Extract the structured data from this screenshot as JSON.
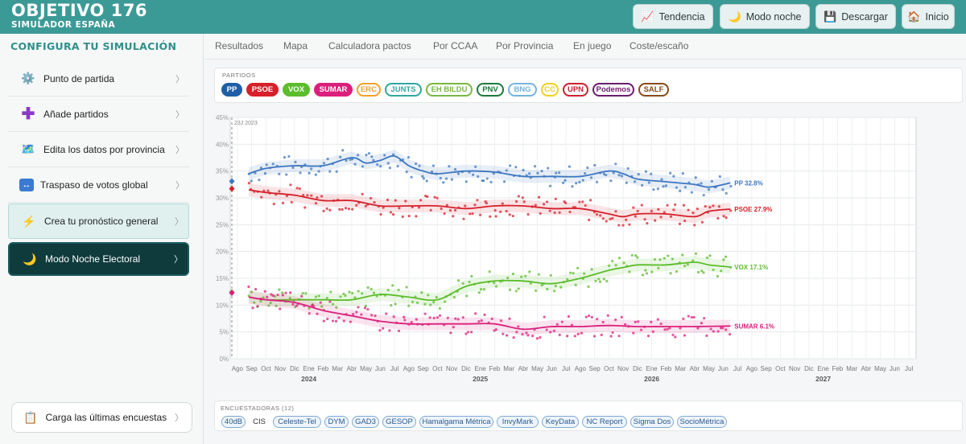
{
  "header": {
    "title": "OBJETIVO 176",
    "subtitle": "SIMULADOR ESPAÑA",
    "buttons": [
      {
        "label": "Tendencia",
        "icon": "chart-icon"
      },
      {
        "label": "Modo noche",
        "icon": "moon-icon"
      },
      {
        "label": "Descargar",
        "icon": "floppy-icon"
      },
      {
        "label": "Inicio",
        "icon": "home-icon"
      }
    ]
  },
  "sidebar": {
    "title": "CONFIGURA TU SIMULACIÓN",
    "items": [
      {
        "label": "Punto de partida",
        "icon": "gear-icon"
      },
      {
        "label": "Añade partidos",
        "icon": "plus-icon"
      },
      {
        "label": "Edita los datos por provincia",
        "icon": "map-icon"
      },
      {
        "label": "Traspaso de votos global",
        "icon": "swap-icon"
      },
      {
        "label": "Crea tu pronóstico general",
        "icon": "lightning-icon"
      },
      {
        "label": "Modo Noche Electoral",
        "icon": "moon-icon"
      }
    ],
    "load_button": {
      "label": "Carga las últimas encuestas",
      "icon": "clipboard-icon"
    },
    "chevron": "〉"
  },
  "tabs": [
    "Resultados",
    "Mapa",
    "Calculadora pactos",
    "Por CCAA",
    "Por Provincia",
    "En juego",
    "Coste/escaño"
  ],
  "parties_label": "PARTIDOS",
  "parties": [
    {
      "name": "PP",
      "color": "#1f5fa8",
      "active": true
    },
    {
      "name": "PSOE",
      "color": "#d6202a",
      "active": true
    },
    {
      "name": "VOX",
      "color": "#5bbd2b",
      "active": true
    },
    {
      "name": "SUMAR",
      "color": "#dc1f7c",
      "active": true
    },
    {
      "name": "ERC",
      "color": "#f2a12c",
      "active": false
    },
    {
      "name": "JUNTS",
      "color": "#2fa7a0",
      "active": false
    },
    {
      "name": "EH BILDU",
      "color": "#78b843",
      "active": false
    },
    {
      "name": "PNV",
      "color": "#1a7a3a",
      "active": false
    },
    {
      "name": "BNG",
      "color": "#74b3e0",
      "active": false
    },
    {
      "name": "CC",
      "color": "#f0d020",
      "active": false
    },
    {
      "name": "UPN",
      "color": "#cc1f2e",
      "active": false
    },
    {
      "name": "Podemos",
      "color": "#6a1b6e",
      "active": false
    },
    {
      "name": "SALF",
      "color": "#8a4a14",
      "active": false
    }
  ],
  "pollsters_label": "ENCUESTADORAS (12)",
  "pollsters": [
    "40dB",
    "CIS",
    "Celeste-Tel",
    "DYM",
    "GAD3",
    "GESOP",
    "Hamalgama Métrica",
    "InvyMark",
    "KeyData",
    "NC Report",
    "Sigma Dos",
    "SocioMétrica"
  ],
  "chart_data": {
    "type": "line",
    "ylim": [
      0,
      45
    ],
    "yticks": [
      "0%",
      "5%",
      "10%",
      "15%",
      "20%",
      "25%",
      "30%",
      "35%",
      "40%",
      "45%"
    ],
    "grid": true,
    "annotation": "23J 2023",
    "x_months": [
      "Ago",
      "Sep",
      "Oct",
      "Nov",
      "Dic",
      "Ene",
      "Feb",
      "Mar",
      "Abr",
      "May",
      "Jun",
      "Jul",
      "Ago",
      "Sep",
      "Oct",
      "Nov",
      "Dic",
      "Ene",
      "Feb",
      "Mar",
      "Abr",
      "May",
      "Jun",
      "Jul",
      "Ago",
      "Sep",
      "Oct",
      "Nov",
      "Dic",
      "Ene",
      "Feb",
      "Mar",
      "Abr",
      "May",
      "Jun",
      "Jul",
      "Ago",
      "Sep",
      "Oct",
      "Nov",
      "Dic",
      "Ene",
      "Feb",
      "Mar",
      "Abr",
      "May",
      "Jun",
      "Jul"
    ],
    "x_years": [
      {
        "label": "2024",
        "month_index": 5
      },
      {
        "label": "2025",
        "month_index": 17
      },
      {
        "label": "2026",
        "month_index": 29
      },
      {
        "label": "2027",
        "month_index": 41
      }
    ],
    "series": [
      {
        "name": "PP",
        "color": "#3d77c0",
        "end_label": "PP 32.8%",
        "start": 33.1,
        "x": [
          0.8,
          2,
          4,
          6,
          8,
          9,
          10,
          11,
          12,
          13,
          14,
          16,
          18,
          20,
          22,
          24,
          26,
          27,
          28,
          30,
          32,
          33,
          34.5
        ],
        "y": [
          34.5,
          35.5,
          36,
          36,
          37.5,
          36.5,
          37,
          37.8,
          36,
          35,
          34.5,
          35,
          34.8,
          34,
          34,
          34,
          35,
          34.5,
          33.5,
          33,
          32.5,
          32,
          32.8
        ]
      },
      {
        "name": "PSOE",
        "color": "#d6202a",
        "end_label": "PSOE 27.9%",
        "start": 31.7,
        "x": [
          0.8,
          2,
          4,
          6,
          8,
          10,
          12,
          14,
          16,
          18,
          20,
          22,
          24,
          26,
          27,
          28,
          30,
          32,
          33,
          34.5
        ],
        "y": [
          31.5,
          31,
          30.5,
          29.5,
          29.5,
          28.5,
          28.5,
          28.5,
          28,
          28.5,
          28.5,
          28,
          28,
          27,
          26.5,
          27,
          27,
          26.5,
          27.5,
          27.9
        ]
      },
      {
        "name": "VOX",
        "color": "#5bbd2b",
        "end_label": "VOX 17.1%",
        "start": 12.4,
        "x": [
          0.8,
          2,
          4,
          6,
          8,
          10,
          12,
          14,
          16,
          18,
          20,
          22,
          24,
          26,
          27,
          28,
          30,
          32,
          33,
          34.5
        ],
        "y": [
          11.5,
          11,
          11,
          11,
          11,
          12,
          11.5,
          11,
          13.5,
          14.5,
          14.5,
          14,
          15,
          16.5,
          17,
          17.5,
          17.5,
          18,
          17.5,
          17.1
        ]
      },
      {
        "name": "SUMAR",
        "color": "#dc1f7c",
        "end_label": "SUMAR 6.1%",
        "start": 12.3,
        "x": [
          0.8,
          2,
          4,
          6,
          8,
          10,
          12,
          14,
          16,
          18,
          20,
          22,
          24,
          26,
          28,
          30,
          32,
          34.5
        ],
        "y": [
          11.5,
          11,
          10.5,
          9,
          8,
          7,
          6.5,
          6.5,
          6.5,
          6.5,
          5.5,
          6,
          6,
          6.2,
          6,
          6,
          6,
          6.1
        ]
      }
    ]
  }
}
